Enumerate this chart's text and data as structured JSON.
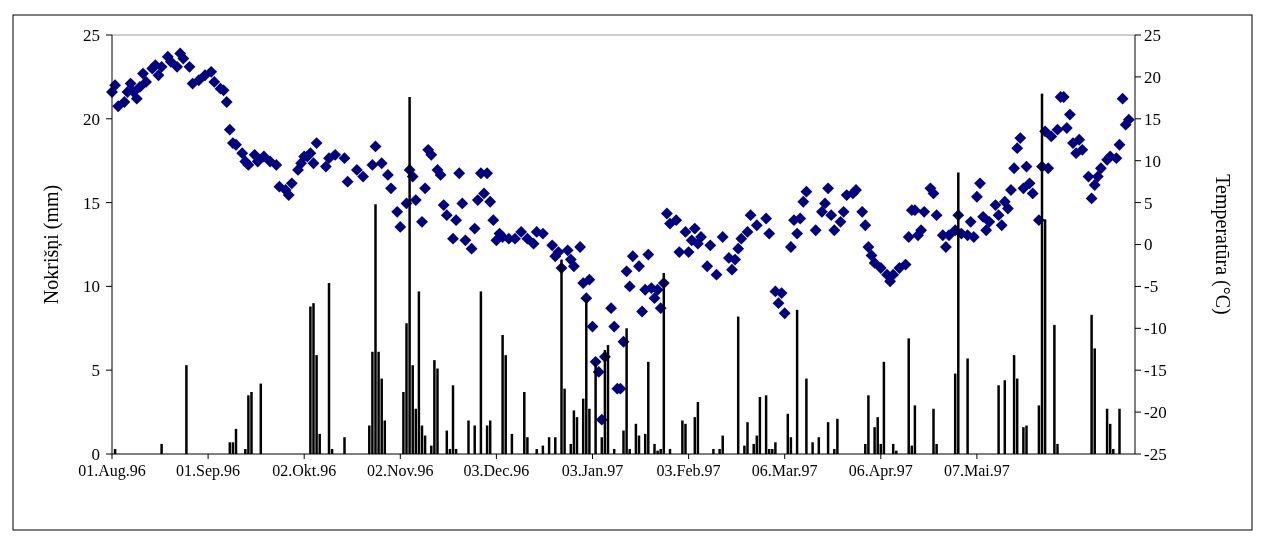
{
  "chart_data": {
    "type": "bar",
    "ylabel": "Nokrišņi (mm)",
    "y2label": "Temperatūra (°C)",
    "marker": "diamond",
    "xlim": [
      "1996-08-01",
      "1997-06-27"
    ],
    "xticks": [
      {
        "value": "1996-08-01",
        "label": "01.Aug.96"
      },
      {
        "value": "1996-09-01",
        "label": "01.Sep.96"
      },
      {
        "value": "1996-10-02",
        "label": "02.Okt.96"
      },
      {
        "value": "1996-11-02",
        "label": "02.Nov.96"
      },
      {
        "value": "1996-12-03",
        "label": "03.Dec.96"
      },
      {
        "value": "1997-01-03",
        "label": "03.Jan.97"
      },
      {
        "value": "1997-02-03",
        "label": "03.Feb.97"
      },
      {
        "value": "1997-03-06",
        "label": "06.Mar.97"
      },
      {
        "value": "1997-04-06",
        "label": "06.Apr.97"
      },
      {
        "value": "1997-05-07",
        "label": "07.Mai.97"
      }
    ],
    "ylim": [
      0,
      25
    ],
    "yticks": [
      0,
      5,
      10,
      15,
      20,
      25
    ],
    "y2lim": [
      -25,
      25
    ],
    "y2ticks": [
      -25,
      -20,
      -15,
      -10,
      -5,
      0,
      5,
      10,
      15,
      20,
      25
    ],
    "series": [
      {
        "color": "#000000",
        "x": [
          "1996-08-02",
          "1996-08-17",
          "1996-08-25",
          "1996-09-08",
          "1996-09-09",
          "1996-09-10",
          "1996-09-13",
          "1996-09-14",
          "1996-09-15",
          "1996-09-18",
          "1996-10-04",
          "1996-10-05",
          "1996-10-06",
          "1996-10-07",
          "1996-10-10",
          "1996-10-11",
          "1996-10-15",
          "1996-10-23",
          "1996-10-24",
          "1996-10-25",
          "1996-10-26",
          "1996-10-27",
          "1996-10-28",
          "1996-11-03",
          "1996-11-04",
          "1996-11-05",
          "1996-11-06",
          "1996-11-07",
          "1996-11-08",
          "1996-11-09",
          "1996-11-10",
          "1996-11-12",
          "1996-11-13",
          "1996-11-14",
          "1996-11-17",
          "1996-11-18",
          "1996-11-19",
          "1996-11-20",
          "1996-11-24",
          "1996-11-26",
          "1996-11-28",
          "1996-11-30",
          "1996-12-01",
          "1996-12-05",
          "1996-12-06",
          "1996-12-08",
          "1996-12-12",
          "1996-12-13",
          "1996-12-16",
          "1996-12-18",
          "1996-12-20",
          "1996-12-22",
          "1996-12-24",
          "1996-12-25",
          "1996-12-27",
          "1996-12-28",
          "1996-12-29",
          "1996-12-31",
          "1997-01-01",
          "1997-01-02",
          "1997-01-04",
          "1997-01-06",
          "1997-01-07",
          "1997-01-08",
          "1997-01-10",
          "1997-01-13",
          "1997-01-14",
          "1997-01-15",
          "1997-01-17",
          "1997-01-18",
          "1997-01-20",
          "1997-01-21",
          "1997-01-23",
          "1997-01-24",
          "1997-01-25",
          "1997-01-26",
          "1997-01-28",
          "1997-02-01",
          "1997-02-02",
          "1997-02-05",
          "1997-02-06",
          "1997-02-11",
          "1997-02-13",
          "1997-02-14",
          "1997-02-19",
          "1997-02-21",
          "1997-02-22",
          "1997-02-24",
          "1997-02-25",
          "1997-02-26",
          "1997-02-28",
          "1997-03-01",
          "1997-03-02",
          "1997-03-03",
          "1997-03-07",
          "1997-03-08",
          "1997-03-10",
          "1997-03-13",
          "1997-03-15",
          "1997-03-17",
          "1997-03-20",
          "1997-03-22",
          "1997-03-23",
          "1997-04-01",
          "1997-04-02",
          "1997-04-04",
          "1997-04-05",
          "1997-04-06",
          "1997-04-07",
          "1997-04-10",
          "1997-04-11",
          "1997-04-15",
          "1997-04-16",
          "1997-04-17",
          "1997-04-23",
          "1997-04-24",
          "1997-04-30",
          "1997-05-01",
          "1997-05-04",
          "1997-05-14",
          "1997-05-16",
          "1997-05-19",
          "1997-05-20",
          "1997-05-22",
          "1997-05-23",
          "1997-05-27",
          "1997-05-28",
          "1997-05-29",
          "1997-06-01",
          "1997-06-02",
          "1997-06-13",
          "1997-06-14",
          "1997-06-18",
          "1997-06-19",
          "1997-06-20",
          "1997-06-22"
        ],
        "values": [
          0.3,
          0.6,
          5.3,
          0.7,
          0.7,
          1.5,
          0.3,
          3.5,
          3.7,
          4.2,
          8.8,
          9.0,
          5.9,
          1.2,
          10.2,
          0.3,
          1.0,
          1.7,
          6.1,
          14.9,
          6.1,
          4.5,
          2.0,
          3.7,
          7.8,
          21.3,
          5.3,
          2.7,
          9.7,
          1.7,
          1.1,
          0.5,
          5.6,
          5.1,
          1.4,
          0.3,
          4.1,
          0.3,
          2.0,
          1.7,
          9.7,
          1.7,
          2.0,
          7.1,
          5.9,
          1.2,
          3.7,
          1.0,
          0.3,
          0.5,
          1.0,
          1.0,
          11.6,
          3.9,
          0.6,
          2.6,
          2.2,
          3.3,
          9.3,
          2.7,
          5.5,
          1.0,
          6.2,
          6.5,
          0.3,
          1.4,
          7.5,
          0.3,
          1.8,
          1.1,
          1.2,
          5.5,
          0.6,
          0.2,
          0.3,
          10.8,
          0.3,
          2.0,
          1.8,
          2.2,
          3.1,
          0.3,
          0.3,
          1.1,
          8.2,
          0.5,
          1.9,
          0.6,
          1.1,
          3.4,
          3.5,
          0.3,
          0.3,
          0.7,
          2.4,
          1.0,
          8.6,
          4.5,
          0.7,
          1.0,
          1.9,
          0.3,
          2.1,
          0.6,
          3.5,
          1.6,
          2.2,
          0.6,
          5.5,
          0.6,
          0.2,
          6.9,
          0.5,
          2.9,
          2.7,
          0.6,
          4.8,
          16.8,
          5.7,
          4.1,
          4.4,
          5.9,
          4.5,
          1.6,
          1.7,
          2.9,
          21.5,
          14.0,
          7.7,
          0.6,
          8.3,
          6.3,
          2.7,
          1.8,
          0.3,
          2.7
        ]
      },
      {
        "type": "scatter",
        "axis": "y2",
        "color": "#000080",
        "x": [
          "1996-08-01",
          "1996-08-02",
          "1996-08-03",
          "1996-08-05",
          "1996-08-06",
          "1996-08-07",
          "1996-08-08",
          "1996-08-09",
          "1996-08-10",
          "1996-08-11",
          "1996-08-12",
          "1996-08-14",
          "1996-08-15",
          "1996-08-16",
          "1996-08-17",
          "1996-08-19",
          "1996-08-20",
          "1996-08-22",
          "1996-08-23",
          "1996-08-24",
          "1996-08-26",
          "1996-08-27",
          "1996-08-29",
          "1996-08-31",
          "1996-09-02",
          "1996-09-03",
          "1996-09-05",
          "1996-09-06",
          "1996-09-07",
          "1996-09-08",
          "1996-09-09",
          "1996-09-10",
          "1996-09-12",
          "1996-09-13",
          "1996-09-14",
          "1996-09-16",
          "1996-09-17",
          "1996-09-19",
          "1996-09-21",
          "1996-09-23",
          "1996-09-24",
          "1996-09-26",
          "1996-09-27",
          "1996-09-28",
          "1996-09-30",
          "1996-10-01",
          "1996-10-02",
          "1996-10-03",
          "1996-10-04",
          "1996-10-05",
          "1996-10-06",
          "1996-10-09",
          "1996-10-10",
          "1996-10-12",
          "1996-10-15",
          "1996-10-16",
          "1996-10-19",
          "1996-10-21",
          "1996-10-24",
          "1996-10-25",
          "1996-10-27",
          "1996-10-29",
          "1996-10-30",
          "1996-11-01",
          "1996-11-02",
          "1996-11-04",
          "1996-11-05",
          "1996-11-06",
          "1996-11-07",
          "1996-11-09",
          "1996-11-10",
          "1996-11-11",
          "1996-11-12",
          "1996-11-14",
          "1996-11-15",
          "1996-11-16",
          "1996-11-17",
          "1996-11-19",
          "1996-11-20",
          "1996-11-21",
          "1996-11-22",
          "1996-11-23",
          "1996-11-25",
          "1996-11-26",
          "1996-11-27",
          "1996-11-28",
          "1996-11-29",
          "1996-11-30",
          "1996-12-01",
          "1996-12-02",
          "1996-12-03",
          "1996-12-04",
          "1996-12-05",
          "1996-12-07",
          "1996-12-09",
          "1996-12-11",
          "1996-12-13",
          "1996-12-15",
          "1996-12-16",
          "1996-12-18",
          "1996-12-21",
          "1996-12-22",
          "1996-12-23",
          "1996-12-24",
          "1996-12-26",
          "1996-12-27",
          "1996-12-28",
          "1996-12-30",
          "1996-12-31",
          "1997-01-01",
          "1997-01-02",
          "1997-01-03",
          "1997-01-04",
          "1997-01-05",
          "1997-01-06",
          "1997-01-07",
          "1997-01-09",
          "1997-01-10",
          "1997-01-11",
          "1997-01-12",
          "1997-01-13",
          "1997-01-14",
          "1997-01-15",
          "1997-01-16",
          "1997-01-18",
          "1997-01-19",
          "1997-01-20",
          "1997-01-21",
          "1997-01-22",
          "1997-01-23",
          "1997-01-24",
          "1997-01-25",
          "1997-01-26",
          "1997-01-27",
          "1997-01-28",
          "1997-01-30",
          "1997-01-31",
          "1997-02-02",
          "1997-02-03",
          "1997-02-04",
          "1997-02-05",
          "1997-02-06",
          "1997-02-07",
          "1997-02-09",
          "1997-02-10",
          "1997-02-12",
          "1997-02-14",
          "1997-02-16",
          "1997-02-17",
          "1997-02-18",
          "1997-02-19",
          "1997-02-20",
          "1997-02-22",
          "1997-02-23",
          "1997-02-25",
          "1997-02-28",
          "1997-03-01",
          "1997-03-03",
          "1997-03-04",
          "1997-03-05",
          "1997-03-06",
          "1997-03-08",
          "1997-03-09",
          "1997-03-10",
          "1997-03-11",
          "1997-03-12",
          "1997-03-13",
          "1997-03-16",
          "1997-03-18",
          "1997-03-19",
          "1997-03-20",
          "1997-03-21",
          "1997-03-22",
          "1997-03-24",
          "1997-03-25",
          "1997-03-26",
          "1997-03-28",
          "1997-03-29",
          "1997-03-31",
          "1997-04-01",
          "1997-04-02",
          "1997-04-03",
          "1997-04-04",
          "1997-04-06",
          "1997-04-08",
          "1997-04-09",
          "1997-04-10",
          "1997-04-12",
          "1997-04-14",
          "1997-04-15",
          "1997-04-16",
          "1997-04-17",
          "1997-04-18",
          "1997-04-19",
          "1997-04-20",
          "1997-04-22",
          "1997-04-23",
          "1997-04-24",
          "1997-04-26",
          "1997-04-27",
          "1997-04-28",
          "1997-04-30",
          "1997-05-01",
          "1997-05-02",
          "1997-05-04",
          "1997-05-05",
          "1997-05-06",
          "1997-05-07",
          "1997-05-08",
          "1997-05-09",
          "1997-05-10",
          "1997-05-11",
          "1997-05-13",
          "1997-05-14",
          "1997-05-15",
          "1997-05-16",
          "1997-05-17",
          "1997-05-18",
          "1997-05-19",
          "1997-05-20",
          "1997-05-21",
          "1997-05-22",
          "1997-05-23",
          "1997-05-24",
          "1997-05-25",
          "1997-05-27",
          "1997-05-28",
          "1997-05-29",
          "1997-05-30",
          "1997-05-31",
          "1997-06-02",
          "1997-06-03",
          "1997-06-04",
          "1997-06-05",
          "1997-06-06",
          "1997-06-07",
          "1997-06-08",
          "1997-06-09",
          "1997-06-10",
          "1997-06-12",
          "1997-06-13",
          "1997-06-14",
          "1997-06-15",
          "1997-06-16",
          "1997-06-18",
          "1997-06-19",
          "1997-06-21",
          "1997-06-22",
          "1997-06-23",
          "1997-06-24",
          "1997-06-25"
        ],
        "values": [
          18.2,
          19.0,
          16.5,
          17.0,
          18.2,
          19.2,
          18.2,
          17.4,
          18.8,
          20.4,
          19.4,
          21.0,
          21.4,
          20.2,
          21.2,
          22.4,
          21.8,
          21.2,
          22.8,
          22.2,
          21.2,
          19.2,
          19.6,
          20.2,
          20.6,
          19.4,
          18.6,
          18.4,
          17.0,
          13.7,
          12.1,
          11.9,
          10.9,
          9.9,
          9.5,
          10.7,
          9.9,
          10.5,
          9.9,
          9.5,
          6.9,
          6.5,
          5.9,
          7.3,
          8.9,
          9.7,
          10.5,
          10.5,
          10.9,
          9.7,
          12.1,
          9.3,
          10.3,
          10.7,
          10.3,
          7.5,
          8.9,
          8.1,
          9.5,
          11.7,
          9.7,
          8.3,
          6.7,
          3.9,
          2.1,
          4.9,
          8.9,
          8.1,
          5.3,
          2.7,
          6.7,
          11.3,
          10.7,
          8.9,
          8.3,
          4.7,
          3.5,
          0.7,
          2.9,
          8.5,
          4.9,
          0.5,
          -0.5,
          1.9,
          5.3,
          8.5,
          6.1,
          8.5,
          5.1,
          2.9,
          0.5,
          1.3,
          0.9,
          0.7,
          0.7,
          1.5,
          0.7,
          0.1,
          1.5,
          1.3,
          -0.1,
          -1.4,
          -0.9,
          -2.8,
          -0.7,
          -1.8,
          -2.6,
          -0.3,
          -4.6,
          -6.4,
          -4.2,
          -9.8,
          -14.0,
          -15.2,
          -20.9,
          -13.4,
          -7.6,
          -9.8,
          -17.2,
          -17.2,
          -11.6,
          -3.2,
          -5.0,
          -1.4,
          -2.6,
          -8.0,
          -5.4,
          -1.2,
          -5.2,
          -6.4,
          -5.4,
          -7.6,
          -4.6,
          3.7,
          2.5,
          2.9,
          -0.9,
          1.5,
          -0.9,
          0.5,
          1.9,
          0.1,
          0.9,
          -2.6,
          -0.1,
          -3.6,
          0.9,
          -1.6,
          -3.0,
          -1.8,
          -0.5,
          0.7,
          1.5,
          3.5,
          2.3,
          3.1,
          1.3,
          -5.6,
          -7.0,
          -5.8,
          -8.2,
          -0.3,
          2.9,
          1.3,
          3.1,
          5.1,
          6.3,
          1.7,
          3.9,
          4.9,
          6.7,
          3.5,
          1.7,
          2.7,
          3.9,
          5.9,
          6.1,
          6.5,
          3.9,
          2.3,
          -0.3,
          -1.3,
          -2.2,
          -2.8,
          -3.6,
          -4.4,
          -3.6,
          -2.8,
          -2.4,
          0.9,
          4.1,
          4.1,
          1.1,
          1.7,
          3.9,
          6.7,
          6.1,
          3.5,
          1.1,
          -0.3,
          1.1,
          1.7,
          3.5,
          1.3,
          1.1,
          2.7,
          0.9,
          5.7,
          7.3,
          3.3,
          1.7,
          2.7,
          4.7,
          3.5,
          2.3,
          5.1,
          4.3,
          6.5,
          9.1,
          11.5,
          12.7,
          6.7,
          9.3,
          7.3,
          6.1,
          2.9,
          9.3,
          13.5,
          9.1,
          12.9,
          13.7,
          17.6,
          17.6,
          13.9,
          15.5,
          12.1,
          10.9,
          12.5,
          11.3,
          8.1,
          5.5,
          7.1,
          8.1,
          9.1,
          10.1,
          10.5,
          10.3,
          11.9,
          17.4,
          14.3,
          14.9
        ]
      }
    ]
  }
}
